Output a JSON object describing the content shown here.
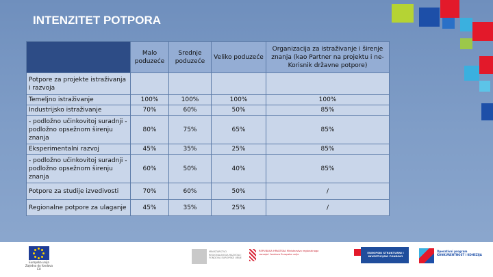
{
  "title": "INTENZITET POTPORA",
  "table": {
    "headers": {
      "small": "Malo poduzeće",
      "medium": "Srednje poduzeće",
      "large": "Veliko poduzeće",
      "research": "Organizacija za istraživanje i širenje znanja (kao Partner na projektu i ne-Korisnik državne potpore)"
    },
    "rows": [
      {
        "label": "Potpore za projekte istraživanja i razvoja",
        "small": "",
        "medium": "",
        "large": "",
        "research": ""
      },
      {
        "label": "Temeljno istraživanje",
        "small": "100%",
        "medium": "100%",
        "large": "100%",
        "research": "100%"
      },
      {
        "label": "Industrijsko istraživanje",
        "small": "70%",
        "medium": "60%",
        "large": "50%",
        "research": "85%"
      },
      {
        "label": "- podložno učinkovitoj suradnji - podložno opsežnom širenju znanja",
        "small": "80%",
        "medium": "75%",
        "large": "65%",
        "research": "85%"
      },
      {
        "label": "Eksperimentalni razvoj",
        "small": "45%",
        "medium": "35%",
        "large": "25%",
        "research": "85%"
      },
      {
        "label": "- podložno učinkovitoj suradnji - podložno opsežnom širenju znanja",
        "small": "60%",
        "medium": "50%",
        "large": "40%",
        "research": "85%"
      },
      {
        "label": "Potpore za studije izvedivosti",
        "small": "70%",
        "medium": "60%",
        "large": "50%",
        "research": "/"
      },
      {
        "label": "Regionalne potpore za ulaganje",
        "small": "45%",
        "medium": "35%",
        "large": "25%",
        "research": "/"
      }
    ]
  },
  "footer": {
    "eu_caption": "Europska unija Zajedno do fondova EU",
    "ministry_text": "MINISTARSTVO REGIONALNOGA RAZVOJA I FONDOVA EUROPSKE UNIJE",
    "republic_text": "REPUBLIKA HRVATSKA Ministarstvo regionalnoga razvoja i fondova Europske unije",
    "funds_text": "EUROPSKI STRUKTURNI I INVESTICIJSKI FONDOVI",
    "op_text": "Operativni program KONKURENTNOST I KOHEZIJA"
  }
}
